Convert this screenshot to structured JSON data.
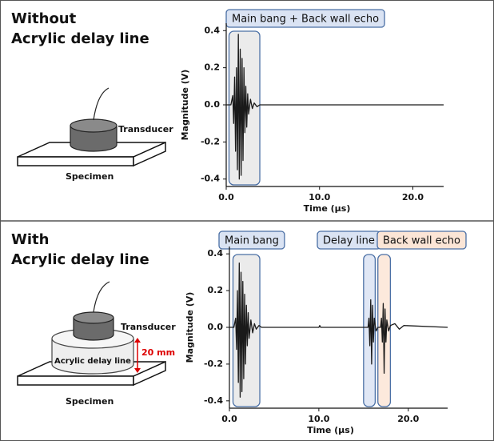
{
  "chart_data": [
    {
      "type": "line",
      "heading": [
        "Without",
        "Acrylic delay line"
      ],
      "diagram": {
        "transducer": "Transducer",
        "specimen": "Specimen"
      },
      "xlabel": "Time (μs)",
      "ylabel": "Magnitude (V)",
      "xlim": [
        0,
        23.3
      ],
      "ylim": [
        -0.44,
        0.44
      ],
      "xticks": [
        {
          "value": 0,
          "label": "0.0"
        },
        {
          "value": 10,
          "label": "10.0"
        },
        {
          "value": 20,
          "label": "20.0"
        }
      ],
      "yticks": [
        -0.4,
        -0.2,
        {
          "value": 0,
          "label": "0.0"
        },
        0.2,
        0.4
      ],
      "color": "#1a1a1a",
      "x": [
        0,
        0.5,
        0.7,
        0.8,
        0.9,
        1.0,
        1.1,
        1.2,
        1.3,
        1.4,
        1.5,
        1.6,
        1.7,
        1.8,
        1.9,
        2.0,
        2.1,
        2.2,
        2.3,
        2.4,
        2.6,
        2.8,
        3.0,
        3.3,
        3.6,
        4.0,
        23.3
      ],
      "values": [
        0,
        0,
        0.05,
        -0.1,
        0.15,
        -0.25,
        0.2,
        -0.35,
        0.38,
        -0.4,
        0.3,
        -0.38,
        0.25,
        -0.3,
        0.2,
        -0.15,
        0.1,
        -0.12,
        0.06,
        -0.05,
        0.03,
        -0.02,
        0.01,
        -0.01,
        0,
        0,
        0
      ],
      "annotations": [
        {
          "text": "Main bang + Back wall echo",
          "x_range": [
            0.3,
            3.6
          ],
          "fill": "#e8e8e8",
          "label_fill": "#dae3f3"
        }
      ]
    },
    {
      "type": "line",
      "heading": [
        "With",
        "Acrylic delay line"
      ],
      "diagram": {
        "transducer": "Transducer",
        "specimen": "Specimen",
        "delay_line": "Acrylic delay line",
        "thickness": "20 mm"
      },
      "xlabel": "Time (μs)",
      "ylabel": "Magnitude (V)",
      "xlim": [
        0,
        24.4
      ],
      "ylim": [
        -0.44,
        0.44
      ],
      "xticks": [
        {
          "value": 0,
          "label": "0.0"
        },
        {
          "value": 10,
          "label": "10.0"
        },
        {
          "value": 20,
          "label": "20.0"
        }
      ],
      "yticks": [
        -0.4,
        -0.2,
        {
          "value": 0,
          "label": "0.0"
        },
        0.2,
        0.4
      ],
      "color": "#1a1a1a",
      "x": [
        0,
        0.5,
        0.7,
        0.8,
        0.9,
        1.0,
        1.1,
        1.2,
        1.3,
        1.4,
        1.5,
        1.6,
        1.7,
        1.8,
        1.9,
        2.0,
        2.1,
        2.2,
        2.4,
        2.6,
        2.8,
        3.0,
        3.3,
        3.6,
        4.0,
        10.0,
        10.1,
        10.2,
        15.5,
        15.6,
        15.7,
        15.8,
        15.9,
        16.0,
        16.1,
        16.2,
        16.4,
        16.6,
        16.9,
        17.0,
        17.1,
        17.2,
        17.3,
        17.4,
        17.5,
        17.6,
        17.8,
        18.0,
        18.5,
        19.0,
        19.5,
        24.4
      ],
      "values": [
        0,
        0,
        0.05,
        -0.12,
        0.2,
        -0.3,
        0.35,
        -0.38,
        0.3,
        -0.35,
        0.25,
        -0.28,
        0.18,
        -0.2,
        0.12,
        -0.1,
        0.08,
        -0.06,
        0.04,
        -0.03,
        0.02,
        -0.01,
        0.01,
        0,
        0,
        0,
        0.01,
        0,
        0,
        0.05,
        -0.1,
        0.15,
        -0.2,
        0.12,
        -0.08,
        0.05,
        -0.02,
        0,
        0,
        0.05,
        -0.08,
        0.13,
        -0.25,
        0.1,
        -0.08,
        0.04,
        -0.02,
        0.01,
        0.02,
        -0.01,
        0.01,
        0
      ],
      "annotations": [
        {
          "text": "Main bang",
          "x_range": [
            0.4,
            3.4
          ],
          "fill": "#e8e8e8",
          "label_fill": "#dae3f3"
        },
        {
          "text": "Delay line",
          "x_range": [
            15.0,
            16.3
          ],
          "fill": "#dae3f3",
          "label_fill": "#dae3f3"
        },
        {
          "text": "Back wall echo",
          "x_range": [
            16.6,
            18.0
          ],
          "fill": "#fbe5d6",
          "label_fill": "#fbe5d6"
        }
      ]
    }
  ]
}
